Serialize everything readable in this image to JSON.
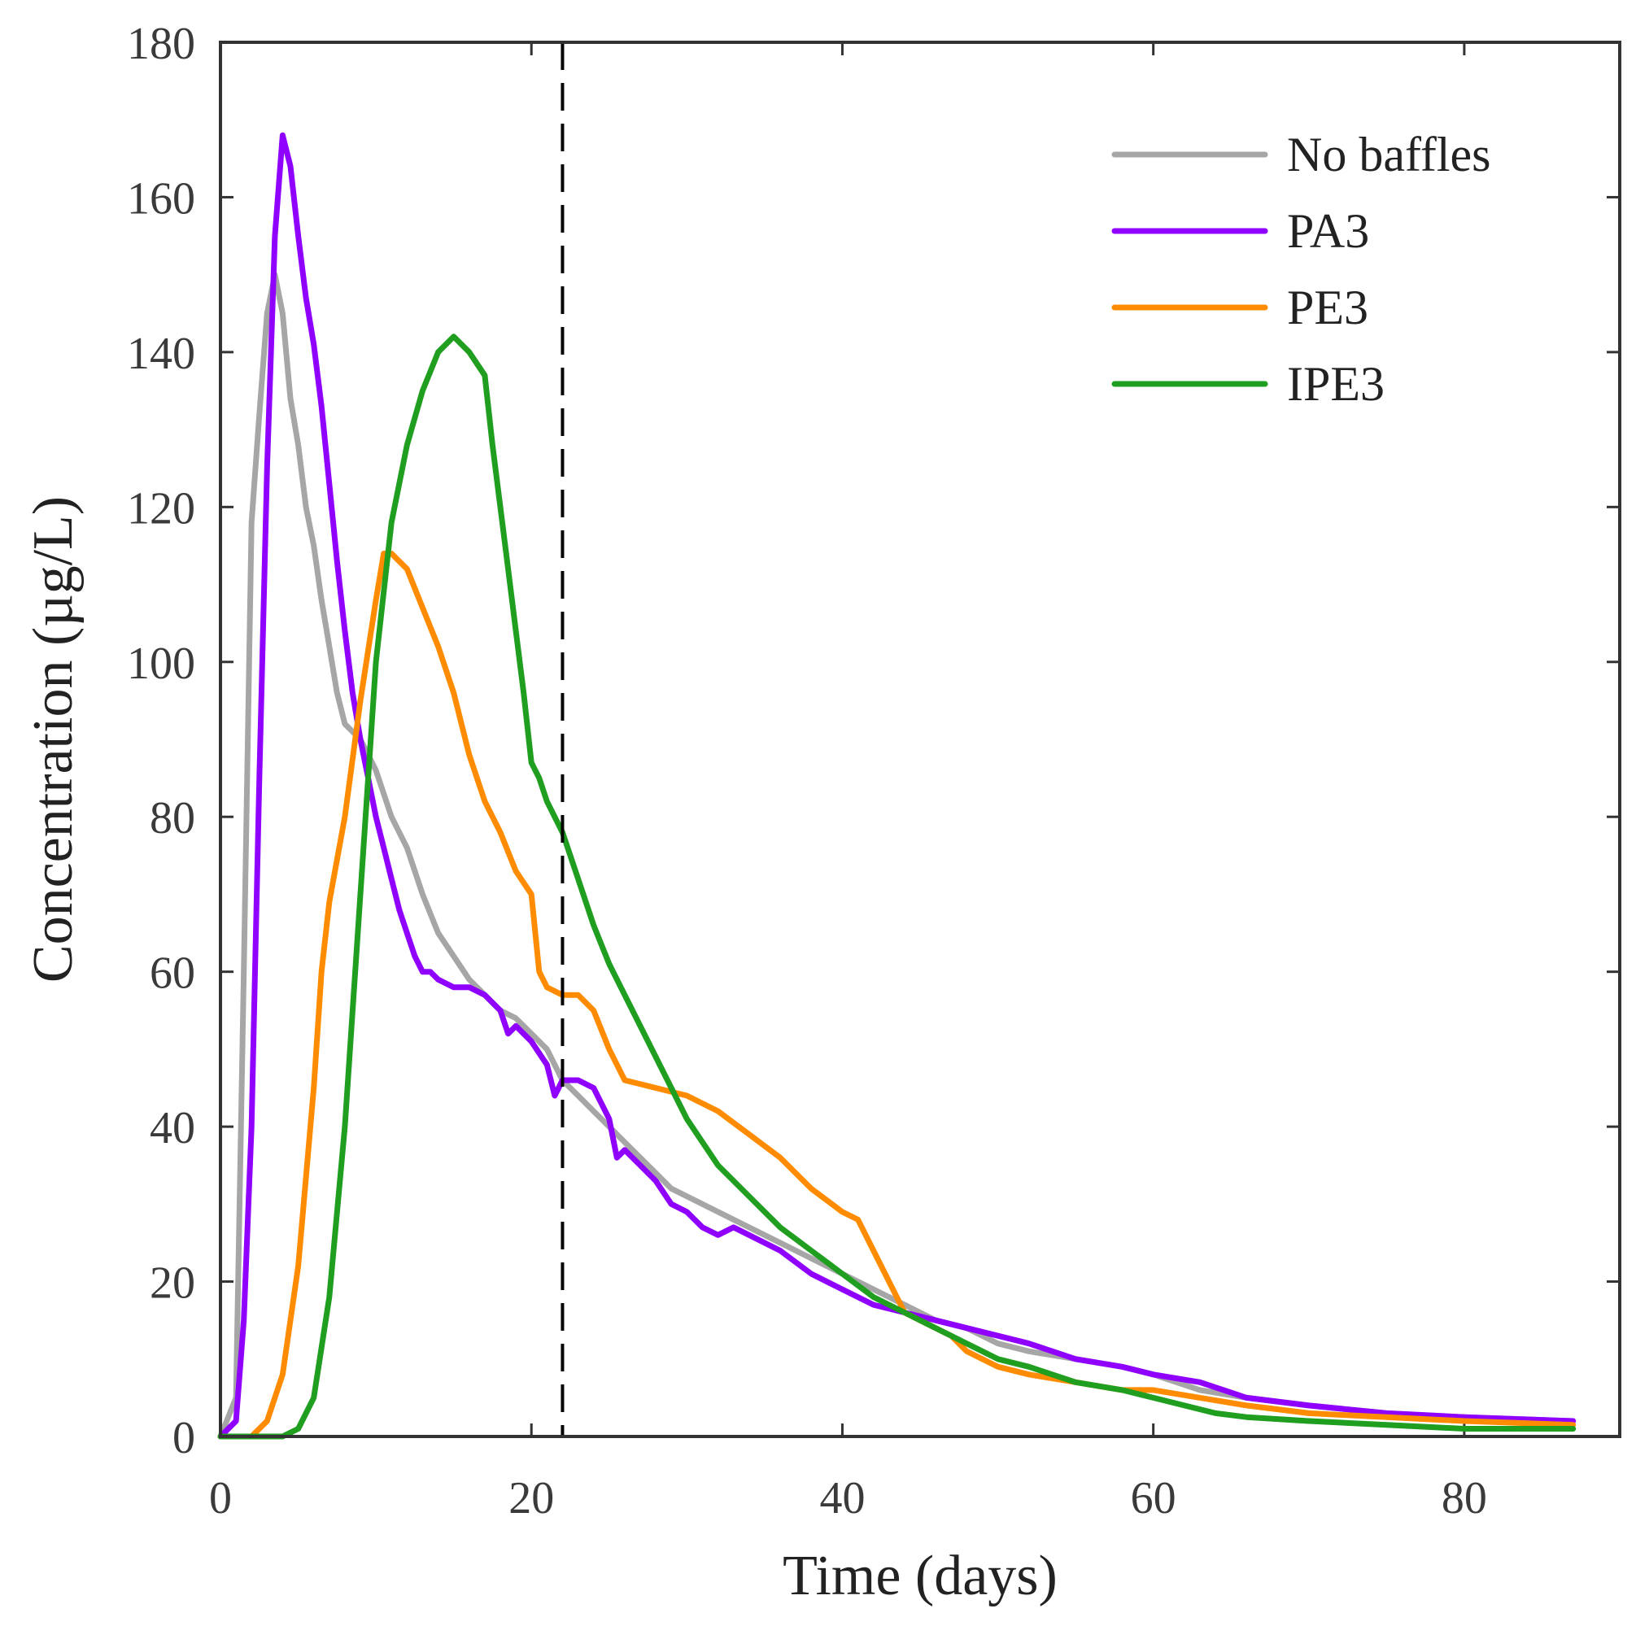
{
  "chart_data": {
    "type": "line",
    "title": "",
    "xlabel": "Time (days)",
    "ylabel": "Concentration (µg/L)",
    "xlim": [
      0,
      90
    ],
    "ylim": [
      0,
      180
    ],
    "xticks": [
      0,
      20,
      40,
      60,
      80
    ],
    "yticks": [
      0,
      20,
      40,
      60,
      80,
      100,
      120,
      140,
      160,
      180
    ],
    "grid": false,
    "legend_position": "top-right",
    "reference_line": {
      "x": 22,
      "style": "dashed",
      "color": "#000000"
    },
    "series": [
      {
        "name": "No baffles",
        "color": "#a6a6a6",
        "x": [
          0,
          1,
          1.5,
          2,
          2.5,
          3,
          3.5,
          4,
          4.5,
          5,
          5.5,
          6,
          6.5,
          7,
          7.5,
          8,
          8.5,
          9,
          10,
          11,
          12,
          13,
          14,
          15,
          16,
          17,
          18,
          19,
          20,
          21,
          22,
          23,
          24,
          25,
          26,
          27,
          28,
          29,
          30,
          32,
          34,
          36,
          38,
          40,
          42,
          44,
          46,
          48,
          50,
          52,
          55,
          58,
          60,
          63,
          66,
          70,
          75,
          80,
          87
        ],
        "y": [
          0,
          5,
          60,
          118,
          132,
          145,
          150,
          145,
          134,
          128,
          120,
          115,
          108,
          102,
          96,
          92,
          91,
          90,
          86,
          80,
          76,
          70,
          65,
          62,
          59,
          57,
          55,
          54,
          52,
          50,
          46,
          44,
          42,
          40,
          38,
          36,
          34,
          32,
          31,
          29,
          27,
          25,
          23,
          21,
          19,
          17,
          15,
          14,
          12,
          11,
          10,
          9,
          8,
          6,
          5,
          4,
          3,
          2.5,
          2
        ]
      },
      {
        "name": "PA3",
        "color": "#8f00ff",
        "x": [
          0,
          1,
          1.5,
          2,
          2.5,
          3,
          3.5,
          4,
          4.5,
          5,
          5.5,
          6,
          6.5,
          7,
          7.5,
          8,
          8.5,
          9,
          9.5,
          10,
          10.5,
          11,
          11.5,
          12,
          12.5,
          13,
          13.5,
          14,
          15,
          16,
          17,
          18,
          18.5,
          19,
          20,
          21,
          21.5,
          22,
          23,
          24,
          25,
          25.5,
          26,
          27,
          28,
          29,
          30,
          31,
          32,
          33,
          34,
          36,
          38,
          40,
          42,
          44,
          46,
          48,
          50,
          52,
          55,
          58,
          60,
          63,
          66,
          70,
          75,
          80,
          87
        ],
        "y": [
          0,
          2,
          15,
          40,
          85,
          125,
          155,
          168,
          164,
          155,
          147,
          141,
          133,
          123,
          113,
          104,
          96,
          90,
          85,
          80,
          76,
          72,
          68,
          65,
          62,
          60,
          60,
          59,
          58,
          58,
          57,
          55,
          52,
          53,
          51,
          48,
          44,
          46,
          46,
          45,
          41,
          36,
          37,
          35,
          33,
          30,
          29,
          27,
          26,
          27,
          26,
          24,
          21,
          19,
          17,
          16,
          15,
          14,
          13,
          12,
          10,
          9,
          8,
          7,
          5,
          4,
          3,
          2.5,
          2
        ]
      },
      {
        "name": "PE3",
        "color": "#ff8c00",
        "x": [
          0,
          2,
          3,
          4,
          5,
          6,
          6.5,
          7,
          8,
          9,
          10,
          10.5,
          11,
          12,
          13,
          14,
          15,
          16,
          17,
          18,
          19,
          20,
          20.5,
          21,
          22,
          23,
          24,
          25,
          26,
          28,
          30,
          32,
          34,
          36,
          38,
          40,
          41,
          42,
          43,
          44,
          45,
          46,
          47,
          48,
          49,
          50,
          52,
          55,
          58,
          60,
          63,
          66,
          70,
          75,
          80,
          87
        ],
        "y": [
          0,
          0,
          2,
          8,
          22,
          45,
          60,
          69,
          80,
          95,
          108,
          114,
          114,
          112,
          107,
          102,
          96,
          88,
          82,
          78,
          73,
          70,
          60,
          58,
          57,
          57,
          55,
          50,
          46,
          45,
          44,
          42,
          39,
          36,
          32,
          29,
          28,
          24,
          20,
          16,
          15,
          14,
          13,
          11,
          10,
          9,
          8,
          7,
          6,
          6,
          5,
          4,
          3,
          2.5,
          2,
          1.5
        ]
      },
      {
        "name": "IPE3",
        "color": "#1f9e1f",
        "x": [
          0,
          4,
          5,
          6,
          7,
          8,
          9,
          10,
          11,
          12,
          13,
          14,
          15,
          16,
          17,
          17.5,
          18,
          18.5,
          19,
          19.5,
          20,
          20.5,
          21,
          22,
          23,
          24,
          25,
          26,
          27,
          28,
          29,
          30,
          32,
          34,
          36,
          38,
          40,
          42,
          44,
          46,
          48,
          50,
          52,
          55,
          58,
          60,
          62,
          64,
          66,
          70,
          75,
          80,
          87
        ],
        "y": [
          0,
          0,
          1,
          5,
          18,
          40,
          70,
          100,
          118,
          128,
          135,
          140,
          142,
          140,
          137,
          128,
          120,
          112,
          104,
          96,
          87,
          85,
          82,
          78,
          72,
          66,
          61,
          57,
          53,
          49,
          45,
          41,
          35,
          31,
          27,
          24,
          21,
          18,
          16,
          14,
          12,
          10,
          9,
          7,
          6,
          5,
          4,
          3,
          2.5,
          2,
          1.5,
          1,
          1
        ]
      }
    ]
  }
}
